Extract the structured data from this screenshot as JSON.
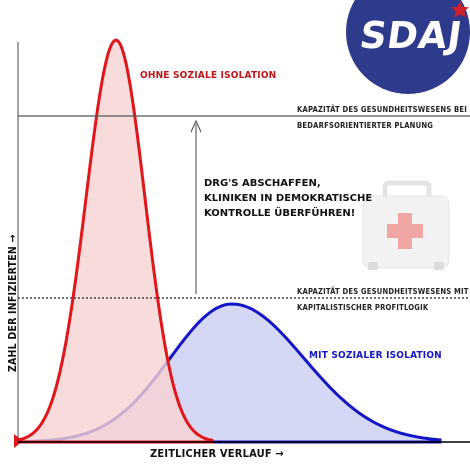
{
  "logo": {
    "text": "SDAJ",
    "circle_color": "#2e3a8c",
    "star_color": "#d0202a"
  },
  "curves": {
    "no_isolation": {
      "label": "Ohne soziale Isolation",
      "color": "#e0161a",
      "fill": "#f6d3d3"
    },
    "with_isolation": {
      "label": "Mit sozialer Isolation",
      "color": "#1515c8",
      "fill": "#cdd1f2"
    }
  },
  "thresholds": {
    "upper": {
      "line1": "Kapazität des Gesundheitswesens bei",
      "line2": "bedarfsorientierter Planung"
    },
    "lower": {
      "line1": "Kapazität des Gesundheitswesens mit",
      "line2": "kapitalistischer Profitlogik"
    }
  },
  "demand": {
    "line1": "DRG'S ABSCHAFFEN,",
    "line2": "KLINIKEN IN DEMOKRATISCHE",
    "line3": "KONTROLLE ÜBERFÜHREN!"
  },
  "axes": {
    "y_label": "Zahl der Infizierten →",
    "x_label": "Zeitlicher Verlauf →"
  },
  "icons": {
    "medkit": "first-aid-kit-icon"
  }
}
